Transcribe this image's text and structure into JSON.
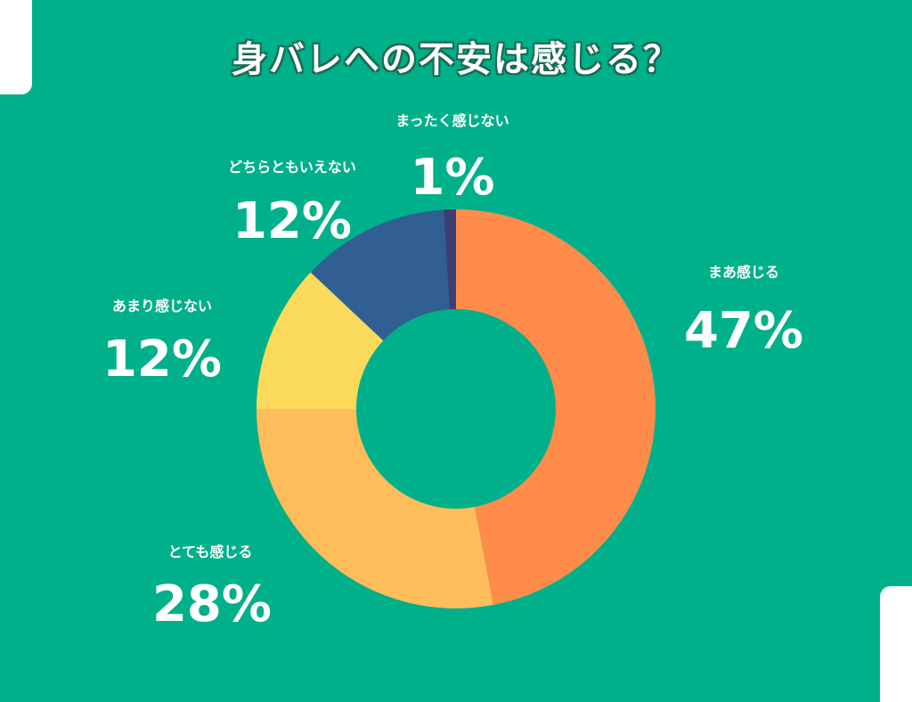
{
  "title": "身バレへの不安は感じる？",
  "chart_data": {
    "type": "pie",
    "title": "身バレへの不安は感じる？",
    "slices": [
      {
        "label": "まあ感じる",
        "value": 47,
        "display": "47%",
        "color": "#ff8c4b"
      },
      {
        "label": "とても感じる",
        "value": 28,
        "display": "28%",
        "color": "#ffbc5a"
      },
      {
        "label": "あまり感じない",
        "value": 12,
        "display": "12%",
        "color": "#fbd95a"
      },
      {
        "label": "どちらともいえない",
        "value": 12,
        "display": "12%",
        "color": "#315f93"
      },
      {
        "label": "まったく感じない",
        "value": 1,
        "display": "1%",
        "color": "#3d3f74"
      }
    ]
  }
}
